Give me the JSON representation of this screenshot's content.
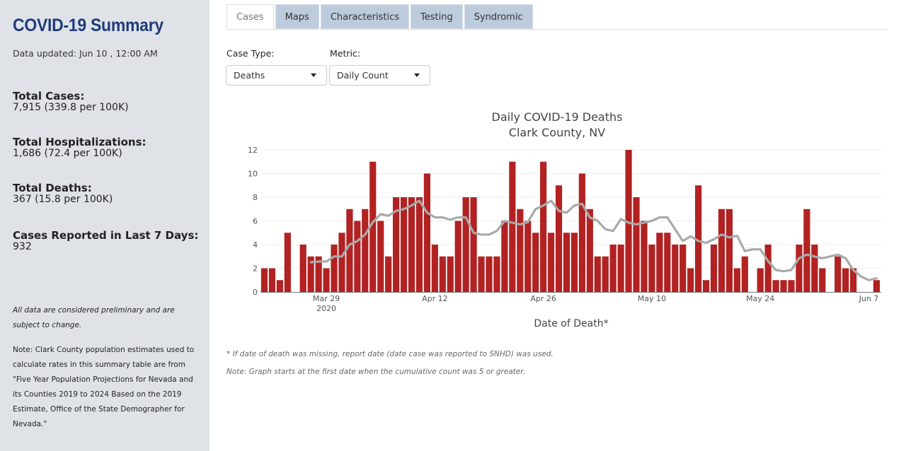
{
  "sidebar": {
    "title": "COVID-19 Summary",
    "updated": "Data updated: Jun 10 , 12:00 AM",
    "stats": [
      {
        "label": "Total Cases:",
        "value": "7,915 (339.8 per 100K)"
      },
      {
        "label": "Total Hospitalizations:",
        "value": "1,686 (72.4 per 100K)"
      },
      {
        "label": "Total Deaths:",
        "value": "367 (15.8 per 100K)"
      },
      {
        "label": "Cases Reported in Last 7 Days:",
        "value": "932"
      }
    ],
    "note_preliminary": "All data are considered preliminary and are subject to change.",
    "note_population": "Note: Clark County population estimates used to calculate rates in this summary table are from \"Five Year Population Projections for Nevada and its Counties 2019 to 2024 Based on the 2019 Estimate, Office of the State Demographer for Nevada.\""
  },
  "tabs": [
    {
      "label": "Cases",
      "active": true
    },
    {
      "label": "Maps",
      "active": false
    },
    {
      "label": "Characteristics",
      "active": false
    },
    {
      "label": "Testing",
      "active": false
    },
    {
      "label": "Syndromic",
      "active": false
    }
  ],
  "controls": {
    "case_type_label": "Case Type:",
    "case_type_value": "Deaths",
    "metric_label": "Metric:",
    "metric_value": "Daily Count"
  },
  "colors": {
    "bar": "#b22222",
    "line": "#a9a9a9",
    "title_blue": "#1f3b7a",
    "sidebar_bg": "#dfe3e8",
    "tab_bg": "#bcccdc"
  },
  "chart_data": {
    "type": "bar",
    "title": "Daily COVID-19 Deaths",
    "subtitle": "Clark County, NV",
    "xlabel": "Date of Death*",
    "ylabel": "",
    "ylim": [
      0,
      12
    ],
    "yticks": [
      0,
      2,
      4,
      6,
      8,
      10,
      12
    ],
    "x_ticks": [
      {
        "label": "Mar 29",
        "sub": "2020",
        "index": 8
      },
      {
        "label": "Apr 12",
        "sub": "",
        "index": 22
      },
      {
        "label": "Apr 26",
        "sub": "",
        "index": 36
      },
      {
        "label": "May 10",
        "sub": "",
        "index": 50
      },
      {
        "label": "May 24",
        "sub": "",
        "index": 64
      },
      {
        "label": "Jun 7",
        "sub": "",
        "index": 78
      }
    ],
    "grid": true,
    "series": [
      {
        "type": "bar",
        "values": [
          2,
          2,
          1,
          5,
          0,
          4,
          3,
          3,
          2,
          4,
          5,
          7,
          6,
          7,
          11,
          6,
          3,
          8,
          8,
          8,
          8,
          10,
          4,
          3,
          3,
          6,
          8,
          8,
          3,
          3,
          3,
          6,
          11,
          7,
          6,
          5,
          11,
          5,
          9,
          5,
          5,
          10,
          7,
          3,
          3,
          4,
          4,
          12,
          8,
          6,
          4,
          5,
          5,
          4,
          4,
          2,
          9,
          1,
          4,
          7,
          7,
          2,
          3,
          0,
          2,
          4,
          1,
          1,
          1,
          4,
          7,
          4,
          2,
          0,
          3,
          2,
          2,
          0,
          0,
          1
        ]
      },
      {
        "type": "line",
        "start_index": 6,
        "values": [
          2.5,
          2.57,
          2.57,
          3,
          3,
          4,
          4.3,
          4.85,
          5.9,
          6.57,
          6.43,
          6.85,
          7,
          7.3,
          7.7,
          6.7,
          6.3,
          6.3,
          6.1,
          6.3,
          6.3,
          5.0,
          4.85,
          4.85,
          5.15,
          6.0,
          5.85,
          5.7,
          5.9,
          7.0,
          7.3,
          7.7,
          6.85,
          6.7,
          7.3,
          7.45,
          6.3,
          6.0,
          5.3,
          5.15,
          6.15,
          5.85,
          5.7,
          5.85,
          6.0,
          6.3,
          6.3,
          5.3,
          4.3,
          4.7,
          4.3,
          4.15,
          4.45,
          4.85,
          4.6,
          4.75,
          3.45,
          3.6,
          3.6,
          2.6,
          1.85,
          1.75,
          1.85,
          2.85,
          3.15,
          3.0,
          2.85,
          3.0,
          3.15,
          2.85,
          1.85,
          1.3,
          1.0,
          1.15
        ]
      }
    ]
  },
  "footnotes": {
    "missing_date": "* If date of death was missing, report date (date case was reported to SNHD) was used.",
    "graph_start": "Note: Graph starts at the first date when the cumulative count was 5 or greater."
  }
}
